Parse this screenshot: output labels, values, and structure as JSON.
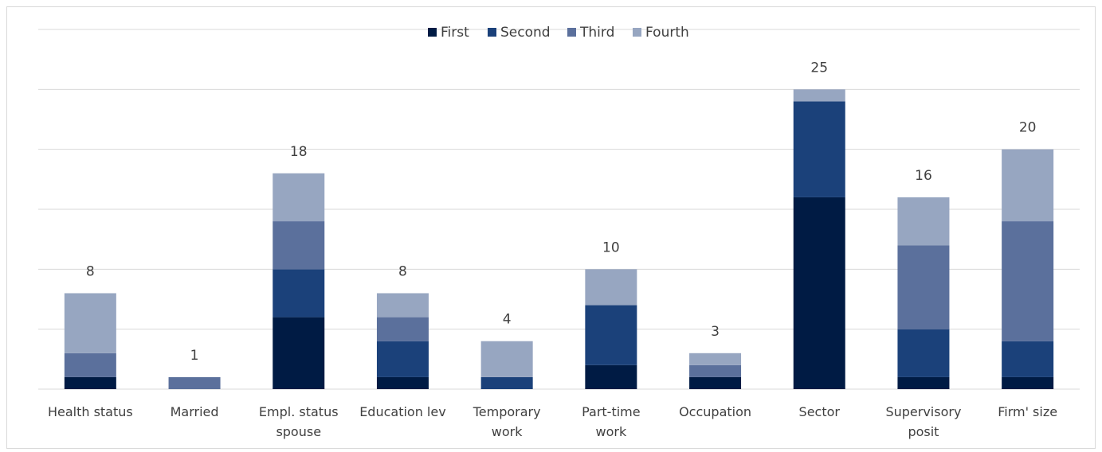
{
  "chart_data": {
    "type": "stacked_bar",
    "categories": [
      "Health status",
      "Married",
      "Empl. status spouse",
      "Education lev",
      "Temporary work",
      "Part-time work",
      "Occupation",
      "Sector",
      "Supervisory posit",
      "Firm' size"
    ],
    "series": [
      {
        "name": "First",
        "color": "#001b44",
        "values": [
          1,
          0,
          6,
          1,
          0,
          2,
          1,
          16,
          1,
          1
        ]
      },
      {
        "name": "Second",
        "color": "#1b417a",
        "values": [
          0,
          0,
          4,
          3,
          1,
          5,
          0,
          8,
          4,
          3
        ]
      },
      {
        "name": "Third",
        "color": "#5b709c",
        "values": [
          2,
          1,
          4,
          2,
          0,
          0,
          1,
          0,
          7,
          10
        ]
      },
      {
        "name": "Fourth",
        "color": "#97a6c1",
        "values": [
          5,
          0,
          4,
          2,
          3,
          3,
          1,
          1,
          4,
          6
        ]
      }
    ],
    "totals": [
      8,
      1,
      18,
      8,
      4,
      10,
      3,
      25,
      16,
      20
    ],
    "ylim": [
      0,
      30
    ],
    "yticks": [
      0,
      5,
      10,
      15,
      20,
      25,
      30
    ],
    "grid": true,
    "legend": "top"
  }
}
